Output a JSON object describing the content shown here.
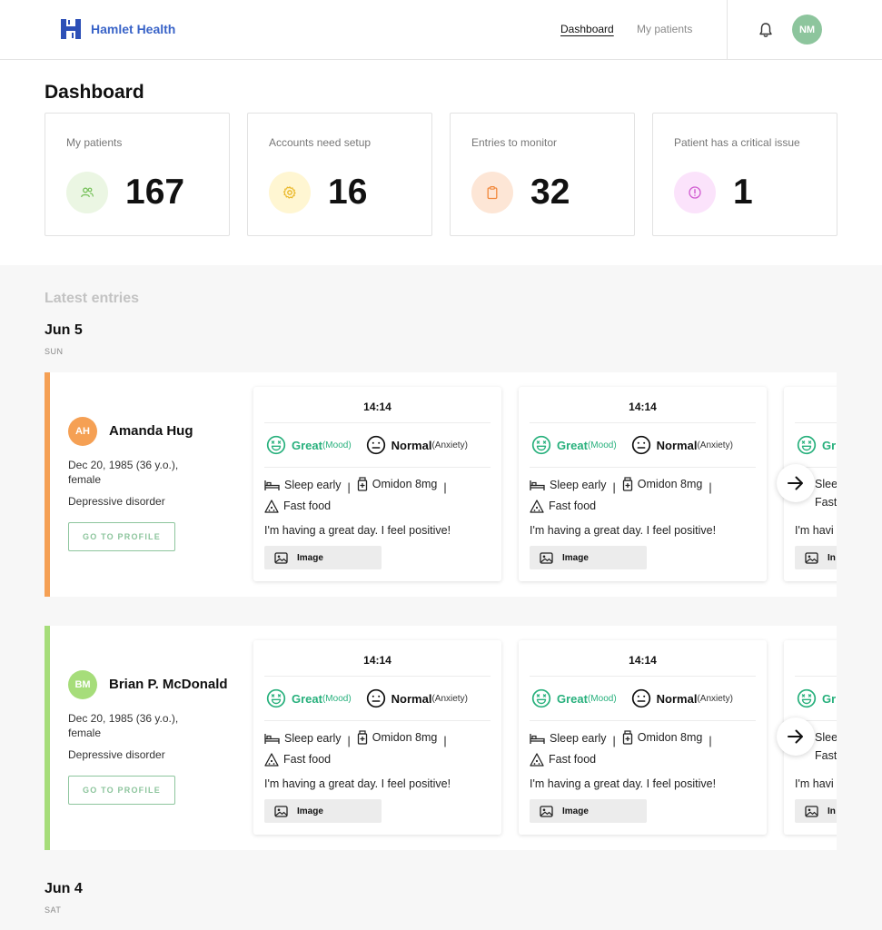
{
  "header": {
    "brand": "Hamlet Health",
    "nav": [
      {
        "label": "Dashboard",
        "active": true
      },
      {
        "label": "My patients",
        "active": false
      }
    ],
    "user_initials": "NM",
    "icons": {
      "logo": "hamlet-h-logo",
      "notifications": "bell-icon"
    }
  },
  "dashboard": {
    "title": "Dashboard",
    "stats": [
      {
        "label": "My patients",
        "value": "167",
        "icon": "users-icon",
        "icon_bg": "#ebf6e3",
        "icon_color": "#76c15a"
      },
      {
        "label": "Accounts need setup",
        "value": "16",
        "icon": "gear-icon",
        "icon_bg": "#fff6d2",
        "icon_color": "#e9b521"
      },
      {
        "label": "Entries to monitor",
        "value": "32",
        "icon": "clipboard-icon",
        "icon_bg": "#fde6d6",
        "icon_color": "#f1873a"
      },
      {
        "label": "Patient has a critical issue",
        "value": "1",
        "icon": "alert-circle-icon",
        "icon_bg": "#fbe3fb",
        "icon_color": "#d05ad0"
      }
    ]
  },
  "latest": {
    "title": "Latest entries",
    "groups": [
      {
        "date": "Jun 5",
        "dow": "SUN"
      },
      {
        "date": "Jun 4",
        "dow": "SAT"
      }
    ],
    "patients": [
      {
        "initials": "AH",
        "avatar_color": "#f5a054",
        "accent_color": "#f5a054",
        "name": "Amanda Hug",
        "dob": "Dec 20, 1985 (36 y.o.), female",
        "diagnosis": "Depressive disorder",
        "button": "GO TO PROFILE"
      },
      {
        "initials": "BM",
        "avatar_color": "#a6dd7a",
        "accent_color": "#a6dd7a",
        "name": "Brian P. McDonald",
        "dob": "Dec 20, 1985 (36 y.o.), female",
        "diagnosis": "Depressive disorder",
        "button": "GO TO PROFILE"
      }
    ],
    "entry": {
      "time": "14:14",
      "mood": "Great",
      "mood_tag": "(Mood)",
      "anxiety": "Normal",
      "anxiety_tag": "(Anxiety)",
      "tags": [
        "Sleep early",
        "Omidon 8mg",
        "Fast food"
      ],
      "separator": "|",
      "note": "I'm having a great day. I feel positive!",
      "image_label": "Image",
      "icons": {
        "mood": "grin-face-icon",
        "anxiety": "neutral-face-icon",
        "sleep": "bed-icon",
        "medication": "pill-bottle-icon",
        "food": "pizza-slice-icon",
        "image": "image-icon",
        "next": "arrow-right-icon"
      }
    },
    "partial_entry": {
      "mood": "Gr",
      "tag_1": "Slee",
      "tag_2": "Fast",
      "note": "I'm havi",
      "image": "In"
    }
  }
}
